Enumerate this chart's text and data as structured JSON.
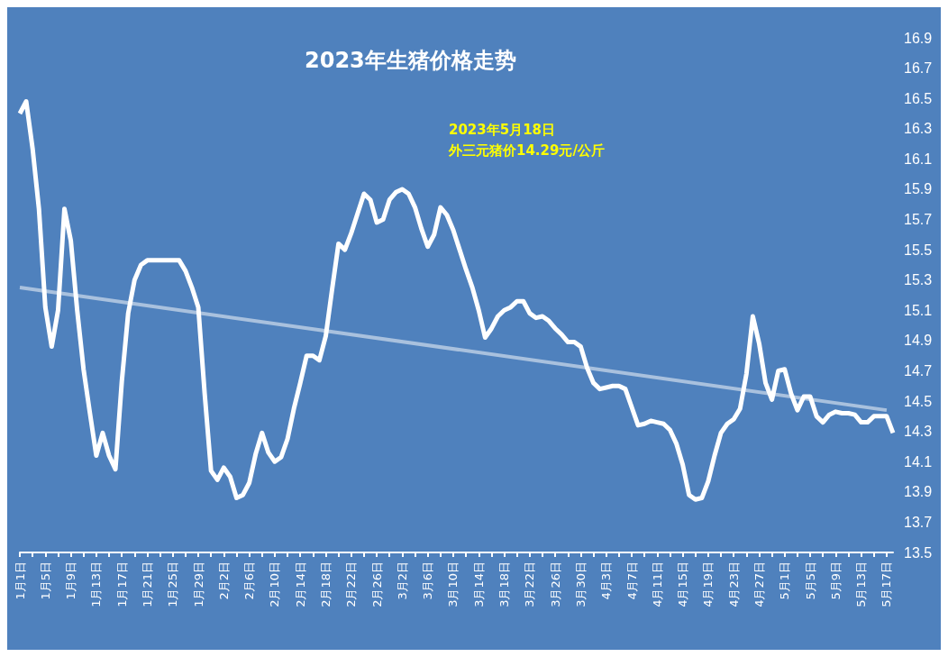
{
  "chart_data": {
    "type": "line",
    "title": "2023年生猪价格走势",
    "annotations": [
      "2023年5月18日",
      "外三元猪价14.29元/公斤"
    ],
    "categories": [
      "1月1日",
      null,
      null,
      null,
      "1月5日",
      null,
      null,
      null,
      "1月9日",
      null,
      null,
      null,
      "1月13日",
      null,
      null,
      null,
      "1月17日",
      null,
      null,
      null,
      "1月21日",
      null,
      null,
      null,
      "1月25日",
      null,
      null,
      null,
      "1月29日",
      null,
      null,
      null,
      "2月2日",
      null,
      null,
      null,
      "2月6日",
      null,
      null,
      null,
      "2月10日",
      null,
      null,
      null,
      "2月14日",
      null,
      null,
      null,
      "2月18日",
      null,
      null,
      null,
      "2月22日",
      null,
      null,
      null,
      "2月26日",
      null,
      null,
      null,
      "3月2日",
      null,
      null,
      null,
      "3月6日",
      null,
      null,
      null,
      "3月10日",
      null,
      null,
      null,
      "3月14日",
      null,
      null,
      null,
      "3月18日",
      null,
      null,
      null,
      "3月22日",
      null,
      null,
      null,
      "3月26日",
      null,
      null,
      null,
      "3月30日",
      null,
      null,
      null,
      "4月3日",
      null,
      null,
      null,
      "4月7日",
      null,
      null,
      null,
      "4月11日",
      null,
      null,
      null,
      "4月15日",
      null,
      null,
      null,
      "4月19日",
      null,
      null,
      null,
      "4月23日",
      null,
      null,
      null,
      "4月27日",
      null,
      null,
      null,
      "5月1日",
      null,
      null,
      null,
      "5月5日",
      null,
      null,
      null,
      "5月9日",
      null,
      null,
      null,
      "5月13日",
      null,
      null,
      null,
      "5月17日",
      null
    ],
    "series": [
      {
        "color": "#ffffff",
        "values": [
          16.4,
          16.48,
          16.17,
          15.77,
          15.12,
          14.86,
          15.1,
          15.77,
          15.56,
          15.1,
          14.71,
          14.42,
          14.14,
          14.29,
          14.14,
          14.05,
          14.63,
          15.08,
          15.3,
          15.4,
          15.43,
          15.43,
          15.43,
          15.43,
          15.43,
          15.43,
          15.36,
          15.25,
          15.12,
          14.55,
          14.04,
          13.98,
          14.06,
          14.0,
          13.86,
          13.88,
          13.96,
          14.15,
          14.29,
          14.16,
          14.1,
          14.13,
          14.25,
          14.45,
          14.62,
          14.8,
          14.8,
          14.77,
          14.93,
          15.24,
          15.54,
          15.5,
          15.61,
          15.74,
          15.87,
          15.83,
          15.68,
          15.7,
          15.83,
          15.88,
          15.9,
          15.87,
          15.78,
          15.64,
          15.52,
          15.6,
          15.78,
          15.73,
          15.63,
          15.5,
          15.37,
          15.25,
          15.1,
          14.92,
          14.98,
          15.06,
          15.1,
          15.12,
          15.16,
          15.16,
          15.08,
          15.05,
          15.06,
          15.03,
          14.98,
          14.94,
          14.89,
          14.89,
          14.86,
          14.72,
          14.62,
          14.58,
          14.59,
          14.6,
          14.6,
          14.58,
          14.46,
          14.34,
          14.35,
          14.37,
          14.36,
          14.35,
          14.31,
          14.22,
          14.08,
          13.88,
          13.85,
          13.86,
          13.97,
          14.14,
          14.29,
          14.35,
          14.38,
          14.45,
          14.68,
          15.06,
          14.88,
          14.62,
          14.51,
          14.7,
          14.71,
          14.55,
          14.44,
          14.53,
          14.53,
          14.4,
          14.36,
          14.41,
          14.43,
          14.42,
          14.42,
          14.41,
          14.36,
          14.36,
          14.4,
          14.4,
          14.4,
          14.29
        ]
      },
      {
        "color": "#b8cce4",
        "x": [
          "1月1日",
          "5月17日"
        ],
        "values": [
          15.25,
          14.44
        ]
      }
    ],
    "ylim": [
      13.5,
      16.9
    ],
    "yticks": [
      13.5,
      13.7,
      13.9,
      14.1,
      14.3,
      14.5,
      14.7,
      14.9,
      15.1,
      15.3,
      15.5,
      15.7,
      15.9,
      16.1,
      16.3,
      16.5,
      16.7,
      16.9
    ],
    "grid": false,
    "marker": "none",
    "line_style": "solid"
  }
}
